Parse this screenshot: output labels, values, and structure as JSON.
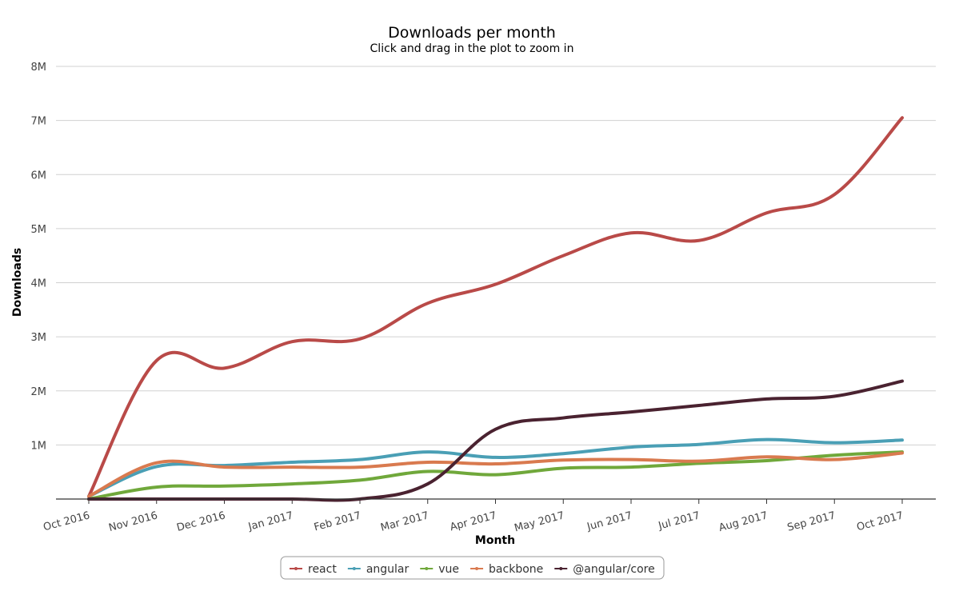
{
  "chart_data": {
    "type": "line",
    "title": "Downloads per month",
    "subtitle": "Click and drag in the plot to zoom in",
    "xlabel": "Month",
    "ylabel": "Downloads",
    "categories": [
      "Oct 2016",
      "Nov 2016",
      "Dec 2016",
      "Jan 2017",
      "Feb 2017",
      "Mar 2017",
      "Apr 2017",
      "May 2017",
      "Jun 2017",
      "Jul 2017",
      "Aug 2017",
      "Sep 2017",
      "Oct 2017"
    ],
    "ylim": [
      0,
      8000000
    ],
    "yticks": [
      {
        "value": 1000000,
        "label": "1M"
      },
      {
        "value": 2000000,
        "label": "2M"
      },
      {
        "value": 3000000,
        "label": "3M"
      },
      {
        "value": 4000000,
        "label": "4M"
      },
      {
        "value": 5000000,
        "label": "5M"
      },
      {
        "value": 6000000,
        "label": "6M"
      },
      {
        "value": 7000000,
        "label": "7M"
      },
      {
        "value": 8000000,
        "label": "8M"
      }
    ],
    "legend_position": "bottom-center",
    "series": [
      {
        "name": "react",
        "color": "#b94a48",
        "values": [
          50000,
          2560000,
          2420000,
          2910000,
          2960000,
          3620000,
          3970000,
          4500000,
          4920000,
          4780000,
          5290000,
          5630000,
          7050000
        ]
      },
      {
        "name": "angular",
        "color": "#4a9fb5",
        "values": [
          50000,
          600000,
          620000,
          680000,
          730000,
          870000,
          770000,
          840000,
          960000,
          1010000,
          1100000,
          1040000,
          1090000
        ]
      },
      {
        "name": "vue",
        "color": "#70a83b",
        "values": [
          0,
          220000,
          240000,
          280000,
          350000,
          510000,
          450000,
          570000,
          590000,
          660000,
          710000,
          810000,
          870000
        ]
      },
      {
        "name": "backbone",
        "color": "#d97a4f",
        "values": [
          50000,
          670000,
          590000,
          590000,
          590000,
          680000,
          650000,
          720000,
          730000,
          700000,
          780000,
          730000,
          850000
        ]
      },
      {
        "name": "@angular/core",
        "color": "#4a2230",
        "values": [
          0,
          0,
          0,
          0,
          0,
          280000,
          1290000,
          1500000,
          1610000,
          1730000,
          1850000,
          1900000,
          2180000
        ]
      }
    ]
  }
}
